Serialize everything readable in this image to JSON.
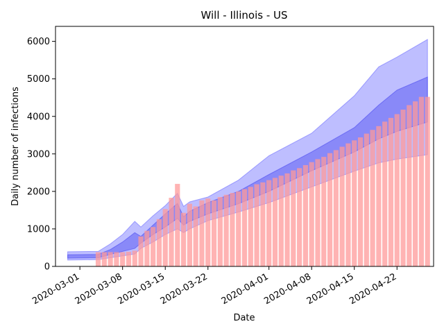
{
  "chart_data": {
    "type": "bar",
    "title": "Will - Illinois - US",
    "xlabel": "Date",
    "ylabel": "Daily number of infections",
    "x_range": [
      "2020-02-26",
      "2020-04-28"
    ],
    "ylim": [
      0,
      6400
    ],
    "x_ticks": [
      "2020-03-01",
      "2020-03-08",
      "2020-03-15",
      "2020-03-22",
      "2020-04-01",
      "2020-04-08",
      "2020-04-15",
      "2020-04-22"
    ],
    "y_ticks": [
      0,
      1000,
      2000,
      3000,
      4000,
      5000,
      6000
    ],
    "grid": false,
    "colors": {
      "bars": "#ff9999",
      "outer_band": "#6e6eff",
      "inner_band": "#4a4af0"
    },
    "series": [
      {
        "type": "bar",
        "x": [
          "2020-03-04",
          "2020-03-05",
          "2020-03-06",
          "2020-03-07",
          "2020-03-08",
          "2020-03-09",
          "2020-03-10",
          "2020-03-11",
          "2020-03-12",
          "2020-03-13",
          "2020-03-14",
          "2020-03-15",
          "2020-03-16",
          "2020-03-17",
          "2020-03-18",
          "2020-03-19",
          "2020-03-20",
          "2020-03-21",
          "2020-03-22",
          "2020-03-23",
          "2020-03-24",
          "2020-03-25",
          "2020-03-26",
          "2020-03-27",
          "2020-03-28",
          "2020-03-29",
          "2020-03-30",
          "2020-03-31",
          "2020-04-01",
          "2020-04-02",
          "2020-04-03",
          "2020-04-04",
          "2020-04-05",
          "2020-04-06",
          "2020-04-07",
          "2020-04-08",
          "2020-04-09",
          "2020-04-10",
          "2020-04-11",
          "2020-04-12",
          "2020-04-13",
          "2020-04-14",
          "2020-04-15",
          "2020-04-16",
          "2020-04-17",
          "2020-04-18",
          "2020-04-19",
          "2020-04-20",
          "2020-04-21",
          "2020-04-22",
          "2020-04-23",
          "2020-04-24",
          "2020-04-25",
          "2020-04-26",
          "2020-04-27"
        ],
        "values": [
          380,
          380,
          380,
          380,
          380,
          390,
          420,
          800,
          950,
          1050,
          1260,
          1530,
          1830,
          2200,
          1430,
          1670,
          1600,
          1760,
          1810,
          1760,
          1850,
          1910,
          1960,
          2000,
          2060,
          2120,
          2190,
          2240,
          2300,
          2360,
          2420,
          2480,
          2560,
          2620,
          2700,
          2780,
          2860,
          2920,
          3020,
          3100,
          3190,
          3280,
          3360,
          3440,
          3540,
          3640,
          3740,
          3860,
          3960,
          4060,
          4180,
          4300,
          4400,
          4520,
          4520
        ]
      },
      {
        "type": "band",
        "x": [
          "2020-02-28",
          "2020-03-04",
          "2020-03-06",
          "2020-03-08",
          "2020-03-10",
          "2020-03-11",
          "2020-03-13",
          "2020-03-15",
          "2020-03-17",
          "2020-03-18",
          "2020-03-19",
          "2020-03-22",
          "2020-03-27",
          "2020-04-01",
          "2020-04-08",
          "2020-04-15",
          "2020-04-19",
          "2020-04-22",
          "2020-04-27"
        ],
        "upper": [
          390,
          400,
          600,
          850,
          1200,
          1050,
          1350,
          1620,
          1950,
          1600,
          1720,
          1850,
          2300,
          2950,
          3550,
          4550,
          5320,
          5580,
          6050
        ],
        "lower": [
          170,
          180,
          230,
          280,
          330,
          480,
          650,
          850,
          1000,
          900,
          1000,
          1220,
          1450,
          1700,
          2120,
          2540,
          2760,
          2860,
          2980
        ]
      },
      {
        "type": "band",
        "x": [
          "2020-02-28",
          "2020-03-04",
          "2020-03-06",
          "2020-03-08",
          "2020-03-10",
          "2020-03-11",
          "2020-03-13",
          "2020-03-15",
          "2020-03-17",
          "2020-03-18",
          "2020-03-19",
          "2020-03-22",
          "2020-03-27",
          "2020-04-01",
          "2020-04-08",
          "2020-04-15",
          "2020-04-19",
          "2020-04-22",
          "2020-04-27"
        ],
        "upper": [
          310,
          320,
          450,
          650,
          900,
          800,
          1100,
          1400,
          1680,
          1320,
          1470,
          1700,
          2000,
          2450,
          3050,
          3700,
          4300,
          4700,
          5050
        ],
        "lower": [
          220,
          230,
          320,
          400,
          480,
          620,
          850,
          1050,
          1280,
          1100,
          1200,
          1400,
          1670,
          2000,
          2550,
          3050,
          3400,
          3600,
          3850
        ]
      }
    ]
  }
}
